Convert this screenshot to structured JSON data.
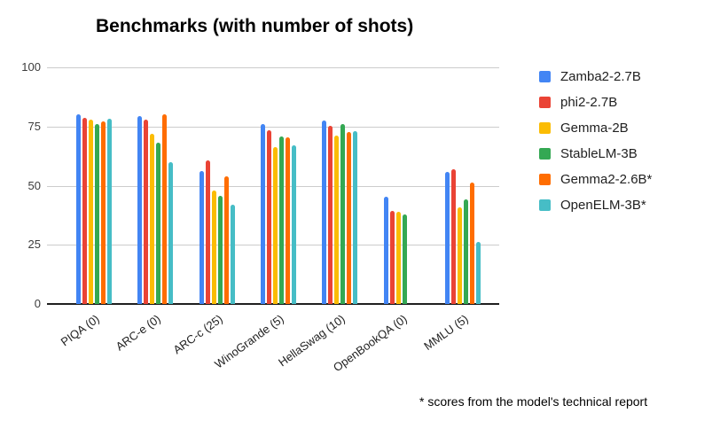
{
  "footnote": "* scores from the model's technical report",
  "chart_data": {
    "type": "bar",
    "title": "Benchmarks (with number of shots)",
    "categories": [
      "PIQA (0)",
      "ARC-e (0)",
      "ARC-c (25)",
      "WinoGrande (5)",
      "HellaSwag (10)",
      "OpenBookQA (0)",
      "MMLU (5)"
    ],
    "series": [
      {
        "name": "Zamba2-2.7B",
        "color": "#4285F4",
        "values": [
          80.0,
          79.4,
          56.2,
          76.0,
          77.5,
          45.5,
          55.8
        ]
      },
      {
        "name": "phi2-2.7B",
        "color": "#EA4335",
        "values": [
          78.6,
          78.0,
          60.8,
          73.4,
          75.2,
          39.3,
          56.8
        ]
      },
      {
        "name": "Gemma-2B",
        "color": "#FBBC04",
        "values": [
          77.9,
          71.9,
          48.1,
          66.2,
          71.2,
          39.0,
          41.0
        ]
      },
      {
        "name": "StableLM-3B",
        "color": "#34A853",
        "values": [
          76.2,
          68.0,
          45.6,
          70.9,
          76.1,
          37.8,
          44.3
        ]
      },
      {
        "name": "Gemma2-2.6B*",
        "color": "#FF6D01",
        "values": [
          77.3,
          80.1,
          53.9,
          70.5,
          72.8,
          null,
          51.2
        ]
      },
      {
        "name": "OpenELM-3B*",
        "color": "#46BDC6",
        "values": [
          78.1,
          59.9,
          42.1,
          67.0,
          73.2,
          null,
          26.4
        ]
      }
    ],
    "y_ticks": [
      100,
      75,
      50,
      25,
      0
    ],
    "ylim": [
      0,
      100
    ],
    "grid": true,
    "legend_position": "right",
    "axis_colors": {
      "gridline": "#cccccc",
      "baseline": "#1f1f1f"
    }
  }
}
